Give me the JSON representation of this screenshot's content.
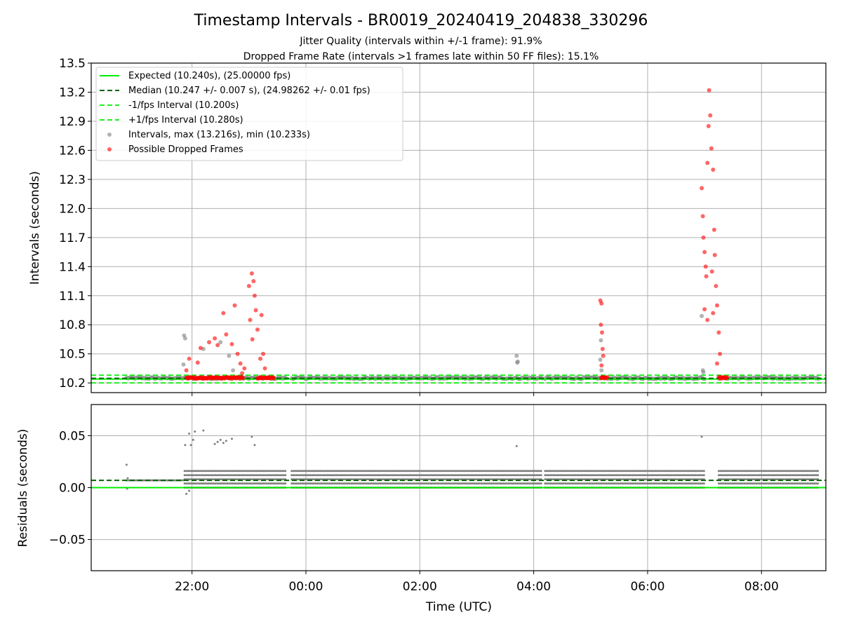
{
  "title": "Timestamp Intervals - BR0019_20240419_204838_330296",
  "subtitle1": "Jitter Quality (intervals within +/-1 frame): 91.9%",
  "subtitle2": "Dropped Frame Rate (intervals >1 frames late within 50 FF files): 15.1%",
  "colors": {
    "expected": "#00ee00",
    "median": "#006400",
    "band": "#22ee22",
    "intervals": "#808080",
    "dropped": "#ff0000"
  },
  "chart_data": [
    {
      "type": "scatter",
      "ylabel": "Intervals (seconds)",
      "xlabel": "",
      "ylim": [
        10.1,
        13.5
      ],
      "yticks": [
        10.2,
        10.5,
        10.8,
        11.1,
        11.4,
        11.7,
        12.0,
        12.3,
        12.6,
        12.9,
        13.2,
        13.5
      ],
      "ytick_labels": [
        "10.2",
        "10.5",
        "10.8",
        "11.1",
        "11.4",
        "11.7",
        "12.0",
        "12.3",
        "12.6",
        "12.9",
        "13.2",
        "13.5"
      ],
      "xlim_hours": [
        20.23,
        33.13
      ],
      "xticks_hours": [
        22,
        24,
        26,
        28,
        30,
        32
      ],
      "grid": true,
      "legend_position": "top-left",
      "lines": [
        {
          "name": "Expected (10.240s), (25.00000 fps)",
          "y": 10.24,
          "style": "solid",
          "color": "#00ee00"
        },
        {
          "name": "Median (10.247 +/- 0.007 s), (24.98262 +/- 0.01 fps)",
          "y": 10.247,
          "style": "dashed",
          "color": "#006400"
        },
        {
          "name": "-1/fps Interval (10.200s)",
          "y": 10.2,
          "style": "dashed",
          "color": "#22ee22"
        },
        {
          "name": "+1/fps Interval (10.280s)",
          "y": 10.28,
          "style": "dashed",
          "color": "#22ee22"
        }
      ],
      "series": [
        {
          "name": "Intervals, max (13.216s), min (10.233s)",
          "color": "#808080",
          "max": 13.216,
          "min": 10.233,
          "regular_band": [
            10.24,
            10.26
          ],
          "coverage_hours": [
            [
              20.85,
              23.65
            ],
            [
              23.75,
              28.15
            ],
            [
              28.2,
              31.0
            ],
            [
              31.25,
              33.0
            ]
          ],
          "outliers": [
            [
              21.86,
              10.69
            ],
            [
              21.88,
              10.66
            ],
            [
              21.85,
              10.39
            ],
            [
              22.2,
              10.55
            ],
            [
              22.5,
              10.62
            ],
            [
              22.65,
              10.48
            ],
            [
              22.72,
              10.33
            ],
            [
              27.7,
              10.48
            ],
            [
              27.72,
              10.42
            ],
            [
              27.71,
              10.41
            ],
            [
              29.18,
              10.64
            ],
            [
              29.17,
              10.44
            ],
            [
              29.19,
              10.33
            ],
            [
              30.95,
              10.89
            ],
            [
              30.97,
              10.33
            ],
            [
              30.98,
              10.31
            ]
          ]
        },
        {
          "name": "Possible Dropped Frames",
          "color": "#ff0000",
          "points": [
            [
              21.95,
              10.45
            ],
            [
              21.9,
              10.33
            ],
            [
              22.1,
              10.41
            ],
            [
              22.15,
              10.56
            ],
            [
              22.3,
              10.62
            ],
            [
              22.4,
              10.66
            ],
            [
              22.45,
              10.59
            ],
            [
              22.55,
              10.92
            ],
            [
              22.6,
              10.7
            ],
            [
              22.7,
              10.6
            ],
            [
              22.75,
              11.0
            ],
            [
              22.8,
              10.5
            ],
            [
              22.85,
              10.4
            ],
            [
              22.88,
              10.3
            ],
            [
              22.92,
              10.35
            ],
            [
              23.0,
              11.2
            ],
            [
              23.05,
              11.33
            ],
            [
              23.08,
              11.25
            ],
            [
              23.1,
              11.1
            ],
            [
              23.12,
              10.95
            ],
            [
              23.15,
              10.75
            ],
            [
              23.02,
              10.85
            ],
            [
              23.06,
              10.65
            ],
            [
              23.2,
              10.45
            ],
            [
              23.22,
              10.9
            ],
            [
              23.25,
              10.5
            ],
            [
              23.28,
              10.35
            ],
            [
              29.17,
              11.05
            ],
            [
              29.19,
              11.02
            ],
            [
              29.18,
              10.8
            ],
            [
              29.2,
              10.72
            ],
            [
              29.21,
              10.55
            ],
            [
              29.22,
              10.48
            ],
            [
              29.19,
              10.38
            ],
            [
              30.95,
              12.21
            ],
            [
              30.97,
              11.92
            ],
            [
              30.98,
              11.7
            ],
            [
              31.0,
              11.55
            ],
            [
              31.02,
              11.4
            ],
            [
              31.03,
              11.3
            ],
            [
              31.05,
              12.47
            ],
            [
              31.07,
              12.85
            ],
            [
              31.08,
              13.22
            ],
            [
              31.1,
              12.96
            ],
            [
              31.12,
              12.62
            ],
            [
              31.15,
              12.4
            ],
            [
              31.17,
              11.78
            ],
            [
              31.18,
              11.52
            ],
            [
              31.2,
              11.2
            ],
            [
              31.22,
              11.0
            ],
            [
              31.25,
              10.72
            ],
            [
              31.27,
              10.5
            ],
            [
              31.0,
              10.96
            ],
            [
              31.05,
              10.85
            ],
            [
              31.13,
              11.35
            ],
            [
              31.15,
              10.92
            ],
            [
              31.22,
              10.4
            ]
          ]
        }
      ]
    },
    {
      "type": "scatter",
      "ylabel": "Residuals (seconds)",
      "xlabel": "Time (UTC)",
      "ylim": [
        -0.08,
        0.08
      ],
      "yticks": [
        -0.05,
        0.0,
        0.05
      ],
      "ytick_labels": [
        "−0.05",
        "0.00",
        "0.05"
      ],
      "xticks_hours": [
        22,
        24,
        26,
        28,
        30,
        32
      ],
      "xtick_labels": [
        "22:00",
        "00:00",
        "02:00",
        "04:00",
        "06:00",
        "08:00"
      ],
      "grid": true,
      "lines": [
        {
          "name": "expected",
          "y": 0.0,
          "style": "solid",
          "color": "#00ee00"
        },
        {
          "name": "median",
          "y": 0.007,
          "style": "dashed",
          "color": "#006400"
        }
      ],
      "series": [
        {
          "name": "",
          "color": "#808080",
          "levels": [
            0.0,
            0.004,
            0.008,
            0.012,
            0.016
          ],
          "outliers": [
            [
              20.85,
              0.022
            ],
            [
              20.86,
              -0.001
            ],
            [
              20.87,
              0.009
            ],
            [
              21.88,
              0.041
            ],
            [
              21.95,
              0.052
            ],
            [
              21.98,
              0.041
            ],
            [
              22.02,
              0.046
            ],
            [
              22.05,
              0.054
            ],
            [
              22.2,
              0.055
            ],
            [
              22.4,
              0.042
            ],
            [
              22.45,
              0.044
            ],
            [
              22.5,
              0.046
            ],
            [
              22.55,
              0.043
            ],
            [
              22.6,
              0.045
            ],
            [
              22.7,
              0.047
            ],
            [
              23.05,
              0.049
            ],
            [
              23.1,
              0.041
            ],
            [
              27.7,
              0.04
            ],
            [
              30.95,
              0.049
            ],
            [
              21.9,
              -0.006
            ],
            [
              21.95,
              -0.003
            ]
          ]
        }
      ]
    }
  ]
}
